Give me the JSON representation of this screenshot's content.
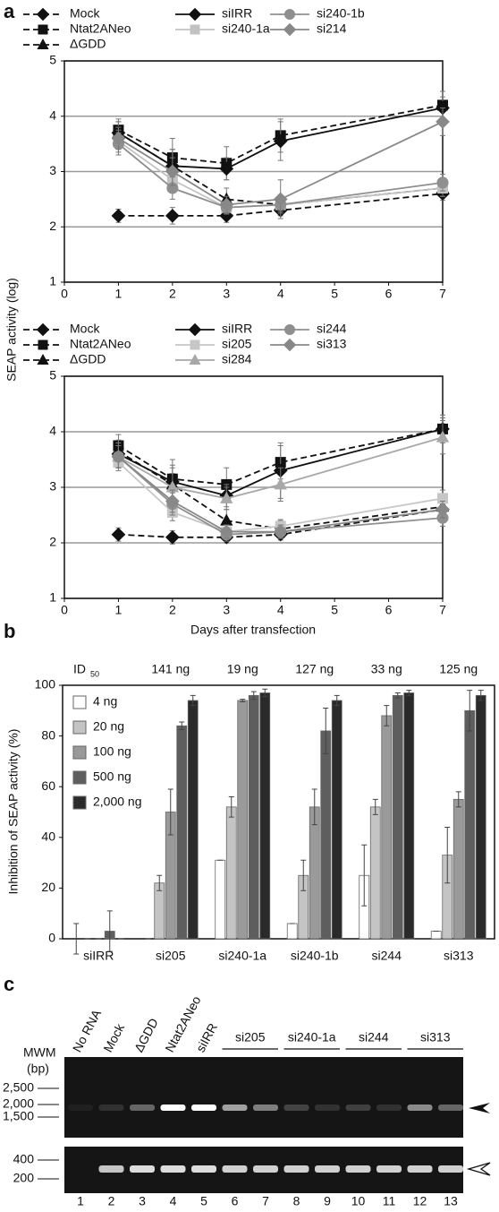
{
  "panel_labels": [
    "a",
    "b",
    "c"
  ],
  "chart_data": [
    {
      "type": "line",
      "y_label": "SEAP activity (log)",
      "x": [
        1,
        2,
        3,
        4,
        7
      ],
      "xlim": [
        0,
        7
      ],
      "xticks": [
        0,
        1,
        2,
        3,
        4,
        5,
        6,
        7
      ],
      "ylim": [
        1,
        5
      ],
      "yticks": [
        1,
        2,
        3,
        4,
        5
      ],
      "grid": true,
      "series": [
        {
          "name": "Mock",
          "color": "#111111",
          "dashed": true,
          "marker": "diamond",
          "values": [
            2.2,
            2.2,
            2.2,
            2.3,
            2.6
          ],
          "errors": [
            0.12,
            0.15,
            0.12,
            0.1,
            0.12
          ]
        },
        {
          "name": "Ntat2ANeo",
          "color": "#111111",
          "dashed": true,
          "marker": "square",
          "values": [
            3.75,
            3.25,
            3.15,
            3.65,
            4.2
          ],
          "errors": [
            0.2,
            0.35,
            0.3,
            0.3,
            0.25
          ]
        },
        {
          "name": "ΔGDD",
          "color": "#111111",
          "dashed": true,
          "marker": "triangle",
          "values": [
            3.7,
            3.1,
            2.5,
            2.4,
            2.7
          ],
          "errors": [
            0.2,
            0.3,
            0.2,
            0.15,
            0.15
          ]
        },
        {
          "name": "siIRR",
          "color": "#111111",
          "dashed": false,
          "marker": "diamond",
          "values": [
            3.7,
            3.1,
            3.05,
            3.55,
            4.15
          ],
          "errors": [
            0.2,
            0.3,
            0.2,
            0.35,
            0.2
          ]
        },
        {
          "name": "si240-1a",
          "color": "#c2c2c2",
          "dashed": false,
          "marker": "square",
          "values": [
            3.55,
            2.85,
            2.35,
            2.4,
            2.7
          ],
          "errors": [
            0.2,
            0.2,
            0.12,
            0.12,
            0.15
          ]
        },
        {
          "name": "si240-1b",
          "color": "#8f8f8f",
          "dashed": false,
          "marker": "circle",
          "values": [
            3.5,
            2.7,
            2.35,
            2.4,
            2.8
          ],
          "errors": [
            0.2,
            0.2,
            0.12,
            0.12,
            0.15
          ]
        },
        {
          "name": "si214",
          "color": "#888888",
          "dashed": false,
          "marker": "diamond",
          "values": [
            3.6,
            3.0,
            2.4,
            2.5,
            3.9
          ],
          "errors": [
            0.2,
            0.25,
            0.15,
            0.35,
            0.25
          ]
        }
      ]
    },
    {
      "type": "line",
      "x_label": "Days after transfection",
      "x": [
        1,
        2,
        3,
        4,
        7
      ],
      "xlim": [
        0,
        7
      ],
      "xticks": [
        0,
        1,
        2,
        3,
        4,
        5,
        6,
        7
      ],
      "ylim": [
        1,
        5
      ],
      "yticks": [
        1,
        2,
        3,
        4,
        5
      ],
      "grid": true,
      "series": [
        {
          "name": "Mock",
          "color": "#111111",
          "dashed": true,
          "marker": "diamond",
          "values": [
            2.15,
            2.1,
            2.1,
            2.15,
            2.6
          ],
          "errors": [
            0.12,
            0.12,
            0.1,
            0.1,
            0.12
          ]
        },
        {
          "name": "Ntat2ANeo",
          "color": "#111111",
          "dashed": true,
          "marker": "square",
          "values": [
            3.75,
            3.15,
            3.05,
            3.45,
            4.05
          ],
          "errors": [
            0.2,
            0.35,
            0.3,
            0.3,
            0.25
          ]
        },
        {
          "name": "ΔGDD",
          "color": "#111111",
          "dashed": true,
          "marker": "triangle",
          "values": [
            3.65,
            3.05,
            2.4,
            2.25,
            2.65
          ],
          "errors": [
            0.2,
            0.3,
            0.2,
            0.15,
            0.15
          ]
        },
        {
          "name": "siIRR",
          "color": "#111111",
          "dashed": false,
          "marker": "diamond",
          "values": [
            3.6,
            3.1,
            2.85,
            3.3,
            4.05
          ],
          "errors": [
            0.2,
            0.3,
            0.2,
            0.5,
            0.2
          ]
        },
        {
          "name": "si205",
          "color": "#c6c6c6",
          "dashed": false,
          "marker": "square",
          "values": [
            3.45,
            2.55,
            2.2,
            2.3,
            2.8
          ],
          "errors": [
            0.15,
            0.15,
            0.12,
            0.12,
            0.15
          ]
        },
        {
          "name": "si284",
          "color": "#a8a8a8",
          "dashed": false,
          "marker": "triangle",
          "values": [
            3.55,
            3.0,
            2.8,
            3.05,
            3.9
          ],
          "errors": [
            0.2,
            0.25,
            0.2,
            0.3,
            0.3
          ]
        },
        {
          "name": "si244",
          "color": "#8f8f8f",
          "dashed": false,
          "marker": "circle",
          "values": [
            3.55,
            2.7,
            2.15,
            2.2,
            2.45
          ],
          "errors": [
            0.2,
            0.2,
            0.12,
            0.12,
            0.15
          ]
        },
        {
          "name": "si313",
          "color": "#888888",
          "dashed": false,
          "marker": "diamond",
          "values": [
            3.55,
            2.75,
            2.2,
            2.2,
            2.6
          ],
          "errors": [
            0.2,
            0.2,
            0.12,
            0.12,
            0.15
          ]
        }
      ]
    },
    {
      "type": "bar",
      "y_label": "Inhibition of SEAP activity (%)",
      "id_label": "ID",
      "id_label_sub": "50",
      "id50": [
        null,
        "141 ng",
        "19 ng",
        "127 ng",
        "33 ng",
        "125 ng"
      ],
      "categories": [
        "siIRR",
        "si205",
        "si240-1a",
        "si240-1b",
        "si244",
        "si313"
      ],
      "ylim": [
        0,
        100
      ],
      "yticks": [
        0,
        20,
        40,
        60,
        80,
        100
      ],
      "series": [
        {
          "name": "4 ng",
          "color": "#ffffff",
          "values": [
            0,
            0,
            31,
            6,
            25,
            3
          ],
          "errors": [
            6,
            0,
            0,
            0,
            12,
            0
          ]
        },
        {
          "name": "20 ng",
          "color": "#c4c4c4",
          "values": [
            0,
            22,
            52,
            25,
            52,
            33
          ],
          "errors": [
            0,
            3,
            4,
            6,
            3,
            11
          ]
        },
        {
          "name": "100 ng",
          "color": "#9a9a9a",
          "values": [
            0,
            50,
            94,
            52,
            88,
            55
          ],
          "errors": [
            0,
            9,
            0.5,
            7,
            4,
            3
          ]
        },
        {
          "name": "500 ng",
          "color": "#5e5e5e",
          "values": [
            3,
            84,
            96,
            82,
            96,
            90
          ],
          "errors": [
            8,
            1.5,
            1.5,
            9,
            1,
            8
          ]
        },
        {
          "name": "2,000 ng",
          "color": "#2a2a2a",
          "values": [
            0,
            94,
            97,
            94,
            97,
            96
          ],
          "errors": [
            0,
            2,
            1.5,
            2,
            1,
            2
          ]
        }
      ]
    }
  ],
  "gel": {
    "mwm": "MWM",
    "mwm_unit": "(bp)",
    "lane_labels": [
      "No RNA",
      "Mock",
      "ΔGDD",
      "Ntat2ANeo",
      "siIRR"
    ],
    "group_labels": [
      "si205",
      "si240-1a",
      "si244",
      "si313"
    ],
    "markers_top": [
      "2,500",
      "2,000",
      "1,500"
    ],
    "markers_bottom": [
      "400",
      "200"
    ],
    "lane_numbers": [
      "1",
      "2",
      "3",
      "4",
      "5",
      "6",
      "7",
      "8",
      "9",
      "10",
      "11",
      "12",
      "13"
    ]
  }
}
